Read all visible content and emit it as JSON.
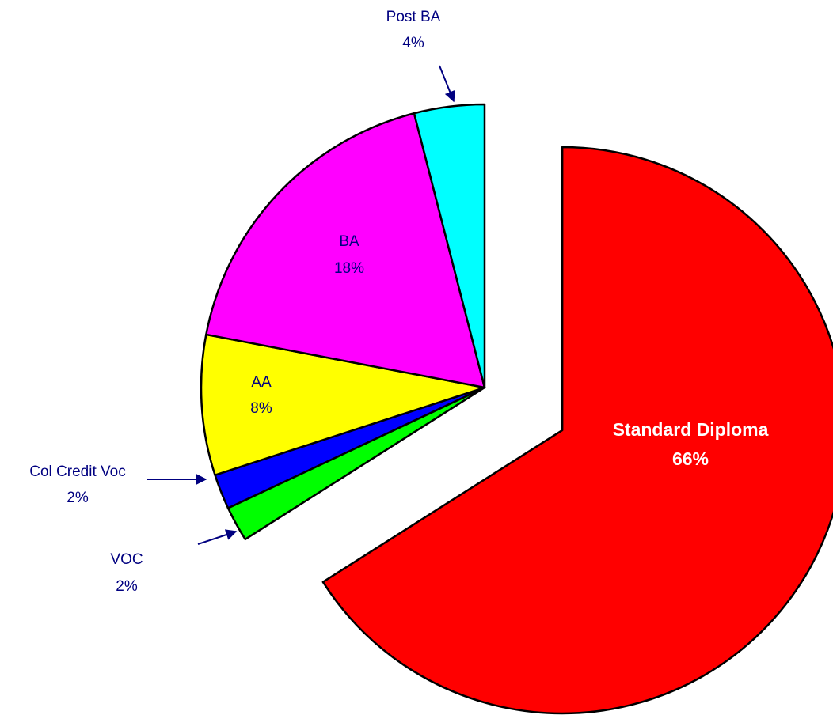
{
  "chart_data": {
    "type": "pie",
    "categories": [
      "Standard Diploma",
      "VOC",
      "Col Credit Voc",
      "AA",
      "BA",
      "Post BA"
    ],
    "values": [
      66,
      2,
      2,
      8,
      18,
      4
    ],
    "value_labels": [
      "66%",
      "2%",
      "2%",
      "8%",
      "18%",
      "4%"
    ],
    "colors": [
      "#ff0000",
      "#00ff00",
      "#0000ff",
      "#ffff00",
      "#ff00ff",
      "#00ffff"
    ]
  }
}
